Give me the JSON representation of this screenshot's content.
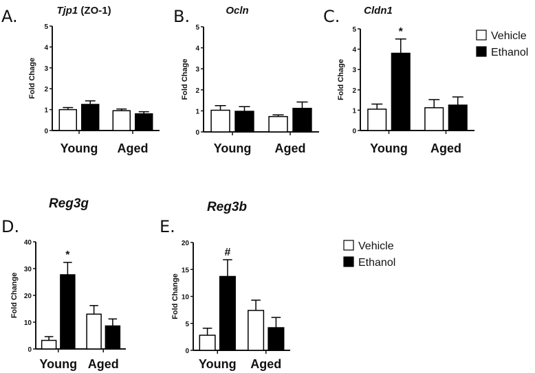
{
  "legends": [
    {
      "items": [
        {
          "label": "Vehicle",
          "color": "#ffffff"
        },
        {
          "label": "Ethanol",
          "color": "#000000"
        }
      ]
    },
    {
      "items": [
        {
          "label": "Vehicle",
          "color": "#ffffff"
        },
        {
          "label": "Ethanol",
          "color": "#000000"
        }
      ]
    }
  ],
  "chart_data": [
    {
      "type": "bar",
      "panel": "A.",
      "title": "Tjp1",
      "title_suffix": " (ZO-1)",
      "ylabel": "Fold Chage",
      "ylim": [
        0,
        5
      ],
      "yticks": [
        "0",
        "1",
        "2",
        "3",
        "4",
        "5"
      ],
      "categories": [
        "Young",
        "Aged"
      ],
      "series": [
        {
          "name": "Vehicle",
          "values": [
            1.0,
            0.95
          ],
          "errors": [
            0.1,
            0.08
          ]
        },
        {
          "name": "Ethanol",
          "values": [
            1.25,
            0.8
          ],
          "errors": [
            0.17,
            0.1
          ]
        }
      ],
      "annotations": []
    },
    {
      "type": "bar",
      "panel": "B.",
      "title": "Ocln",
      "title_suffix": "",
      "ylabel": "Fold Chage",
      "ylim": [
        0,
        5
      ],
      "yticks": [
        "0",
        "1",
        "2",
        "3",
        "4",
        "5"
      ],
      "categories": [
        "Young",
        "Aged"
      ],
      "series": [
        {
          "name": "Vehicle",
          "values": [
            1.03,
            0.73
          ],
          "errors": [
            0.22,
            0.08
          ]
        },
        {
          "name": "Ethanol",
          "values": [
            0.98,
            1.12
          ],
          "errors": [
            0.22,
            0.3
          ]
        }
      ],
      "annotations": []
    },
    {
      "type": "bar",
      "panel": "C.",
      "title": "Cldn1",
      "title_suffix": "",
      "ylabel": "Fold Chage",
      "ylim": [
        0,
        5
      ],
      "yticks": [
        "0",
        "1",
        "2",
        "3",
        "4",
        "5"
      ],
      "categories": [
        "Young",
        "Aged"
      ],
      "series": [
        {
          "name": "Vehicle",
          "values": [
            1.05,
            1.12
          ],
          "errors": [
            0.25,
            0.4
          ]
        },
        {
          "name": "Ethanol",
          "values": [
            3.8,
            1.25
          ],
          "errors": [
            0.7,
            0.4
          ]
        }
      ],
      "annotations": [
        {
          "text": "*",
          "series": 1,
          "category": 0
        }
      ]
    },
    {
      "type": "bar",
      "panel": "D.",
      "title": "Reg3g",
      "title_suffix": "",
      "ylabel": "Fold Change",
      "ylim": [
        0,
        40
      ],
      "yticks": [
        "0",
        "10",
        "20",
        "30",
        "40"
      ],
      "categories": [
        "Young",
        "Aged"
      ],
      "series": [
        {
          "name": "Vehicle",
          "values": [
            3.2,
            13.0
          ],
          "errors": [
            1.4,
            3.2
          ]
        },
        {
          "name": "Ethanol",
          "values": [
            27.7,
            8.6
          ],
          "errors": [
            4.6,
            2.6
          ]
        }
      ],
      "annotations": [
        {
          "text": "*",
          "series": 1,
          "category": 0
        }
      ]
    },
    {
      "type": "bar",
      "panel": "E.",
      "title": "Reg3b",
      "title_suffix": "",
      "ylabel": "Fold Change",
      "ylim": [
        0,
        20
      ],
      "yticks": [
        "0",
        "5",
        "10",
        "15",
        "20"
      ],
      "categories": [
        "Young",
        "Aged"
      ],
      "series": [
        {
          "name": "Vehicle",
          "values": [
            2.8,
            7.4
          ],
          "errors": [
            1.3,
            1.9
          ]
        },
        {
          "name": "Ethanol",
          "values": [
            13.7,
            4.2
          ],
          "errors": [
            3.1,
            1.9
          ]
        }
      ],
      "annotations": [
        {
          "text": "#",
          "series": 1,
          "category": 0
        }
      ]
    }
  ]
}
